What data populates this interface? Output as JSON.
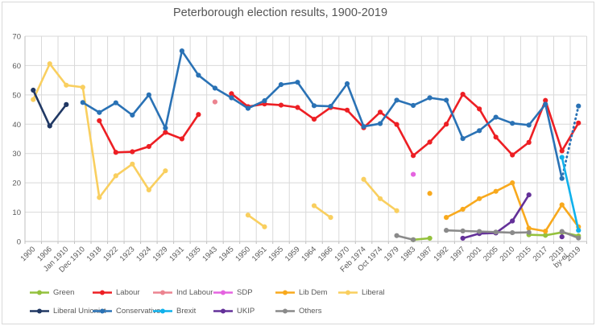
{
  "window": {
    "background": "#ffffff",
    "border_color": "#d9d9d9"
  },
  "chart_data": {
    "type": "line",
    "title": "Peterborough election results, 1900-2019",
    "grid": true,
    "legend_position": "bottom",
    "y_axis": {
      "min": 0,
      "max": 70,
      "tick_step": 10,
      "ticks": [
        0,
        10,
        20,
        30,
        40,
        50,
        60,
        70
      ]
    },
    "x_axis": {
      "categories": [
        "1900",
        "1906",
        "Jan 1910",
        "Dec 1910",
        "1918",
        "1922",
        "1923",
        "1924",
        "1929",
        "1931",
        "1935",
        "1943",
        "1945",
        "1950",
        "1951",
        "1955",
        "1959",
        "1964",
        "1966",
        "1970",
        "Feb 1974",
        "Oct 1974",
        "1979",
        "1983",
        "1987",
        "1992",
        "1997",
        "2001",
        "2005",
        "2010",
        "2015",
        "2017",
        "2019\nby-el.",
        "2019"
      ]
    },
    "series": [
      {
        "name": "Green",
        "color": "#94C13D",
        "values": [
          null,
          null,
          null,
          null,
          null,
          null,
          null,
          null,
          null,
          null,
          null,
          null,
          null,
          null,
          null,
          null,
          null,
          null,
          null,
          null,
          null,
          null,
          null,
          0.6,
          1.1,
          null,
          null,
          null,
          null,
          null,
          2.3,
          2.1,
          3.1,
          1.9
        ]
      },
      {
        "name": "Labour",
        "color": "#ED1F24",
        "values": [
          null,
          null,
          null,
          null,
          41.2,
          30.4,
          30.6,
          32.4,
          37.2,
          35.0,
          43.3,
          null,
          50.4,
          46.0,
          46.9,
          46.5,
          45.7,
          41.7,
          45.7,
          44.8,
          38.8,
          44.1,
          39.9,
          29.3,
          33.9,
          40.0,
          50.2,
          45.2,
          35.6,
          29.5,
          33.8,
          48.1,
          30.9,
          40.4
        ]
      },
      {
        "name": "Ind Labour",
        "color": "#EC8490",
        "values": [
          null,
          null,
          null,
          null,
          null,
          null,
          null,
          null,
          null,
          null,
          null,
          47.6,
          null,
          null,
          null,
          null,
          null,
          null,
          null,
          null,
          null,
          null,
          null,
          null,
          null,
          null,
          null,
          null,
          null,
          null,
          null,
          null,
          null,
          null
        ]
      },
      {
        "name": "SDP",
        "color": "#E564E0",
        "values": [
          null,
          null,
          null,
          null,
          null,
          null,
          null,
          null,
          null,
          null,
          null,
          null,
          null,
          null,
          null,
          null,
          null,
          null,
          null,
          null,
          null,
          null,
          null,
          22.9,
          null,
          null,
          null,
          null,
          null,
          null,
          null,
          null,
          null,
          null
        ]
      },
      {
        "name": "Lib Dem",
        "color": "#F8A91D",
        "line_breaks_after": [
          24
        ],
        "values": [
          null,
          null,
          null,
          null,
          null,
          null,
          null,
          null,
          null,
          null,
          null,
          null,
          null,
          null,
          null,
          null,
          null,
          null,
          null,
          null,
          null,
          null,
          null,
          null,
          16.4,
          8.2,
          11.0,
          14.6,
          17.1,
          20.0,
          4.5,
          3.5,
          12.5,
          5.0
        ]
      },
      {
        "name": "Liberal",
        "color": "#F9CF5F",
        "values": [
          48.4,
          60.6,
          53.3,
          52.6,
          15.0,
          22.4,
          26.4,
          17.6,
          24.1,
          null,
          null,
          null,
          null,
          9.0,
          5.0,
          null,
          null,
          12.2,
          8.2,
          null,
          21.2,
          14.6,
          10.5,
          null,
          null,
          null,
          null,
          null,
          null,
          null,
          null,
          null,
          null,
          null
        ]
      },
      {
        "name": "Liberal Unionist",
        "color": "#203864",
        "values": [
          51.6,
          39.4,
          46.7,
          null,
          null,
          null,
          null,
          null,
          null,
          null,
          null,
          null,
          null,
          null,
          null,
          null,
          null,
          null,
          null,
          null,
          null,
          null,
          null,
          null,
          null,
          null,
          null,
          null,
          null,
          null,
          null,
          null,
          null,
          null
        ]
      },
      {
        "name": "Conservative",
        "color": "#2A72B5",
        "dashed_pairs": [
          32
        ],
        "values": [
          null,
          null,
          null,
          47.4,
          44.0,
          47.3,
          43.1,
          50.0,
          38.7,
          65.0,
          56.7,
          52.3,
          49.0,
          45.4,
          48.0,
          53.5,
          54.3,
          46.3,
          46.1,
          53.8,
          39.2,
          40.2,
          48.2,
          46.4,
          49.0,
          48.2,
          35.1,
          37.8,
          42.4,
          40.3,
          39.7,
          46.8,
          21.5,
          46.2
        ]
      },
      {
        "name": "Brexit",
        "color": "#0FB1EC",
        "values": [
          null,
          null,
          null,
          null,
          null,
          null,
          null,
          null,
          null,
          null,
          null,
          null,
          null,
          null,
          null,
          null,
          null,
          null,
          null,
          null,
          null,
          null,
          null,
          null,
          null,
          null,
          null,
          null,
          null,
          null,
          null,
          null,
          28.7,
          3.8
        ]
      },
      {
        "name": "UKIP",
        "color": "#643199",
        "values": [
          null,
          null,
          null,
          null,
          null,
          null,
          null,
          null,
          null,
          null,
          null,
          null,
          null,
          null,
          null,
          null,
          null,
          null,
          null,
          null,
          null,
          null,
          null,
          null,
          null,
          null,
          1.1,
          2.7,
          2.9,
          7.0,
          15.9,
          null,
          1.6,
          null
        ]
      },
      {
        "name": "Others",
        "color": "#8A8A8A",
        "values": [
          null,
          null,
          null,
          null,
          null,
          null,
          null,
          null,
          null,
          null,
          null,
          null,
          null,
          null,
          null,
          null,
          null,
          null,
          null,
          null,
          null,
          null,
          2.0,
          0.6,
          null,
          3.8,
          3.6,
          3.4,
          3.2,
          3.0,
          3.1,
          null,
          3.4,
          1.2
        ]
      }
    ],
    "legend_rows": [
      [
        0,
        1,
        2,
        3,
        4,
        5
      ],
      [
        6,
        7,
        8,
        9,
        10
      ]
    ],
    "style": {
      "gridline_color": "#d9d9d9",
      "axis_color": "#bfbfbf",
      "tick_label_color": "#595959",
      "title_color": "#555555"
    }
  }
}
